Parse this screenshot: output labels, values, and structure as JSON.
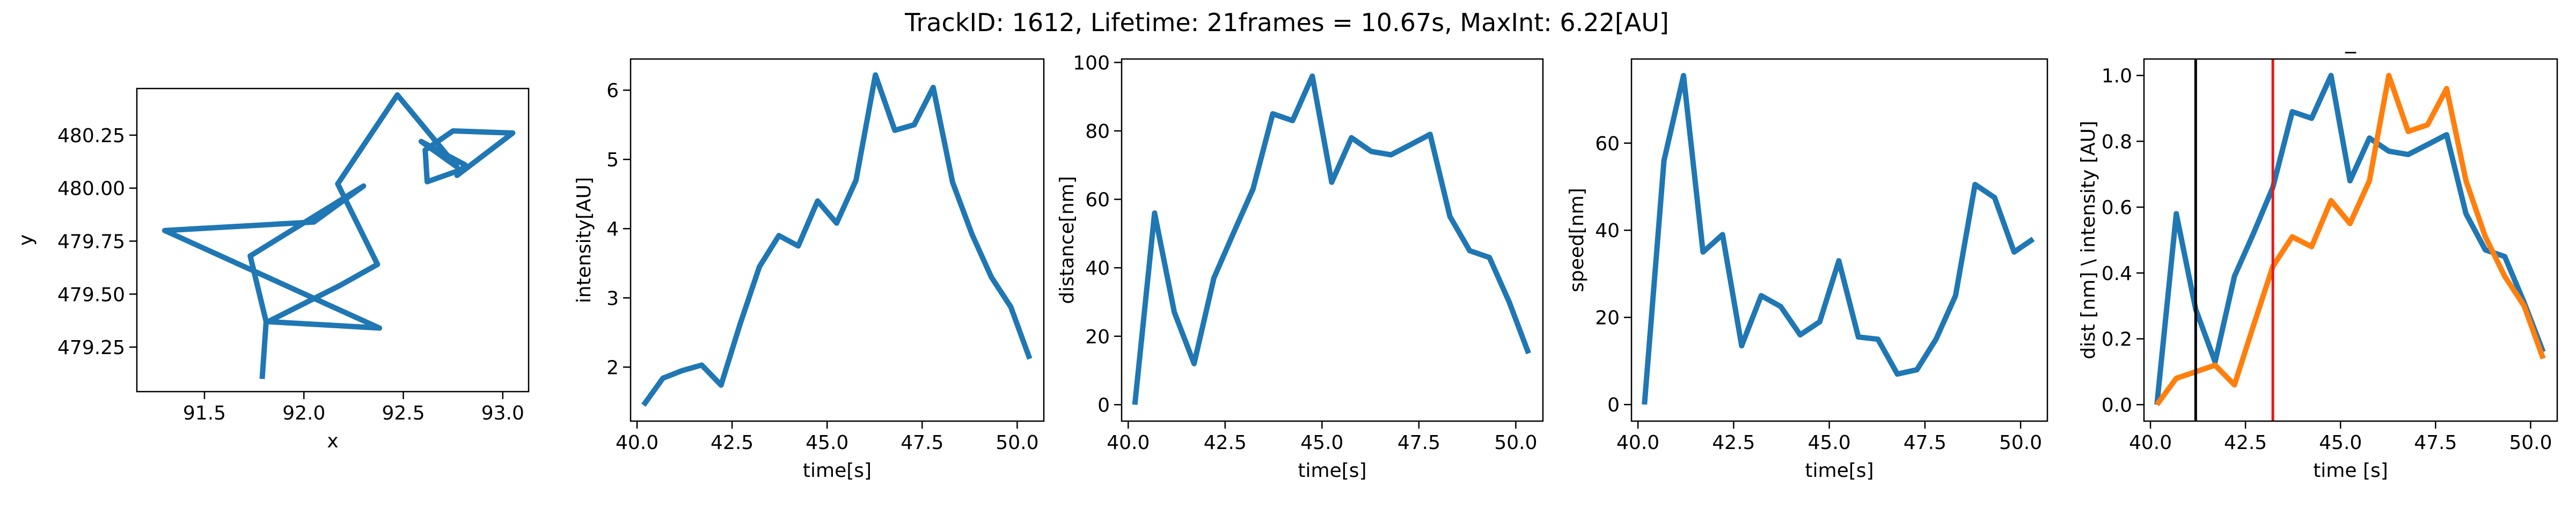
{
  "figure": {
    "suptitle": "TrackID: 1612, Lifetime: 21frames = 10.67s, MaxInt: 6.22[AU]"
  },
  "chart_data": [
    {
      "type": "line",
      "title": "",
      "xlabel": "x",
      "ylabel": "y",
      "xlim": [
        91.16,
        93.13
      ],
      "ylim": [
        479.04,
        480.47
      ],
      "xticks": [
        91.5,
        92.0,
        92.5,
        93.0
      ],
      "xtick_labels": [
        "91.5",
        "92.0",
        "92.5",
        "93.0"
      ],
      "yticks": [
        479.25,
        479.5,
        479.75,
        480.0,
        480.25
      ],
      "ytick_labels": [
        "479.25",
        "479.50",
        "479.75",
        "480.00",
        "480.25"
      ],
      "grid": false,
      "series": [
        {
          "color": "#1f77b4",
          "x": [
            91.79,
            91.81,
            91.73,
            92.3,
            92.05,
            91.3,
            92.38,
            91.82,
            92.18,
            92.37,
            92.17,
            92.47,
            92.77,
            92.59,
            92.81,
            92.77,
            93.05,
            92.75,
            92.61,
            92.62,
            92.83
          ],
          "y": [
            479.1,
            479.37,
            479.68,
            480.01,
            479.84,
            479.8,
            479.34,
            479.37,
            479.54,
            479.64,
            480.02,
            480.44,
            480.1,
            480.22,
            480.11,
            480.06,
            480.26,
            480.27,
            480.18,
            480.03,
            480.1
          ]
        }
      ]
    },
    {
      "type": "line",
      "title": "",
      "xlabel": "time[s]",
      "ylabel": "intensity[AU]",
      "xlim": [
        39.83,
        50.7
      ],
      "ylim": [
        1.22,
        6.45
      ],
      "xticks": [
        40.0,
        42.5,
        45.0,
        47.5,
        50.0
      ],
      "xtick_labels": [
        "40.0",
        "42.5",
        "45.0",
        "47.5",
        "50.0"
      ],
      "yticks": [
        2,
        3,
        4,
        5,
        6
      ],
      "ytick_labels": [
        "2",
        "3",
        "4",
        "5",
        "6"
      ],
      "grid": false,
      "series": [
        {
          "color": "#1f77b4",
          "x": [
            40.17,
            40.68,
            41.19,
            41.7,
            42.21,
            42.71,
            43.22,
            43.73,
            44.24,
            44.75,
            45.25,
            45.76,
            46.27,
            46.78,
            47.29,
            47.79,
            48.3,
            48.81,
            49.32,
            49.83,
            50.33
          ],
          "y": [
            1.45,
            1.84,
            1.95,
            2.03,
            1.74,
            2.62,
            3.45,
            3.9,
            3.75,
            4.4,
            4.08,
            4.7,
            6.22,
            5.42,
            5.5,
            6.04,
            4.67,
            3.92,
            3.3,
            2.87,
            2.12
          ]
        }
      ]
    },
    {
      "type": "line",
      "title": "",
      "xlabel": "time[s]",
      "ylabel": "distance[nm]",
      "xlim": [
        39.83,
        50.7
      ],
      "ylim": [
        -4.8,
        101.0
      ],
      "xticks": [
        40.0,
        42.5,
        45.0,
        47.5,
        50.0
      ],
      "xtick_labels": [
        "40.0",
        "42.5",
        "45.0",
        "47.5",
        "50.0"
      ],
      "yticks": [
        0,
        20,
        40,
        60,
        80,
        100
      ],
      "ytick_labels": [
        "0",
        "20",
        "40",
        "60",
        "80",
        "100"
      ],
      "grid": false,
      "series": [
        {
          "color": "#1f77b4",
          "x": [
            40.17,
            40.68,
            41.19,
            41.7,
            42.21,
            42.71,
            43.22,
            43.73,
            44.24,
            44.75,
            45.25,
            45.76,
            46.27,
            46.78,
            47.29,
            47.79,
            48.3,
            48.81,
            49.32,
            49.83,
            50.33
          ],
          "y": [
            0,
            56,
            27,
            12,
            37,
            50,
            63,
            85,
            83,
            96,
            65,
            78,
            74,
            73,
            76,
            79,
            55,
            45,
            43,
            30,
            15
          ]
        }
      ]
    },
    {
      "type": "line",
      "title": "",
      "xlabel": "time[s]",
      "ylabel": "speed[nm]",
      "xlim": [
        39.83,
        50.7
      ],
      "ylim": [
        -3.8,
        79.3
      ],
      "xticks": [
        40.0,
        42.5,
        45.0,
        47.5,
        50.0
      ],
      "xtick_labels": [
        "40.0",
        "42.5",
        "45.0",
        "47.5",
        "50.0"
      ],
      "yticks": [
        0,
        20,
        40,
        60
      ],
      "ytick_labels": [
        "0",
        "20",
        "40",
        "60"
      ],
      "grid": false,
      "series": [
        {
          "color": "#1f77b4",
          "x": [
            40.17,
            40.68,
            41.19,
            41.7,
            42.21,
            42.71,
            43.22,
            43.73,
            44.24,
            44.75,
            45.25,
            45.76,
            46.27,
            46.78,
            47.29,
            47.79,
            48.3,
            48.81,
            49.32,
            49.83,
            50.33
          ],
          "y": [
            0,
            56,
            75.5,
            35,
            39,
            13.5,
            25,
            22.5,
            16,
            19,
            33,
            15.5,
            15,
            7,
            8,
            15,
            25,
            50.5,
            47.5,
            35,
            38
          ]
        }
      ]
    },
    {
      "type": "line",
      "title": "_",
      "xlabel": "time [s]",
      "ylabel": "dist [nm] \\ intensity [AU]",
      "xlim": [
        39.83,
        50.7
      ],
      "ylim": [
        -0.05,
        1.05
      ],
      "xticks": [
        40.0,
        42.5,
        45.0,
        47.5,
        50.0
      ],
      "xtick_labels": [
        "40.0",
        "42.5",
        "45.0",
        "47.5",
        "50.0"
      ],
      "yticks": [
        0.0,
        0.2,
        0.4,
        0.6,
        0.8,
        1.0
      ],
      "ytick_labels": [
        "0.0",
        "0.2",
        "0.4",
        "0.6",
        "0.8",
        "1.0"
      ],
      "grid": false,
      "vlines": [
        {
          "x": 41.19,
          "color": "#000000"
        },
        {
          "x": 43.22,
          "color": "#e31a1c"
        }
      ],
      "series": [
        {
          "color": "#1f77b4",
          "x": [
            40.17,
            40.68,
            41.19,
            41.7,
            42.21,
            42.71,
            43.22,
            43.73,
            44.24,
            44.75,
            45.25,
            45.76,
            46.27,
            46.78,
            47.29,
            47.79,
            48.3,
            48.81,
            49.32,
            49.83,
            50.33
          ],
          "y": [
            0.0,
            0.58,
            0.29,
            0.13,
            0.39,
            0.52,
            0.66,
            0.89,
            0.87,
            1.0,
            0.68,
            0.81,
            0.77,
            0.76,
            0.79,
            0.82,
            0.58,
            0.47,
            0.45,
            0.31,
            0.16
          ]
        },
        {
          "color": "#ff7f0e",
          "x": [
            40.17,
            40.68,
            41.19,
            41.7,
            42.21,
            42.71,
            43.22,
            43.73,
            44.24,
            44.75,
            45.25,
            45.76,
            46.27,
            46.78,
            47.29,
            47.79,
            48.3,
            48.81,
            49.32,
            49.83,
            50.33
          ],
          "y": [
            0.0,
            0.08,
            0.1,
            0.12,
            0.06,
            0.24,
            0.42,
            0.51,
            0.48,
            0.62,
            0.55,
            0.68,
            1.0,
            0.83,
            0.85,
            0.96,
            0.68,
            0.51,
            0.39,
            0.3,
            0.14
          ]
        }
      ]
    }
  ]
}
